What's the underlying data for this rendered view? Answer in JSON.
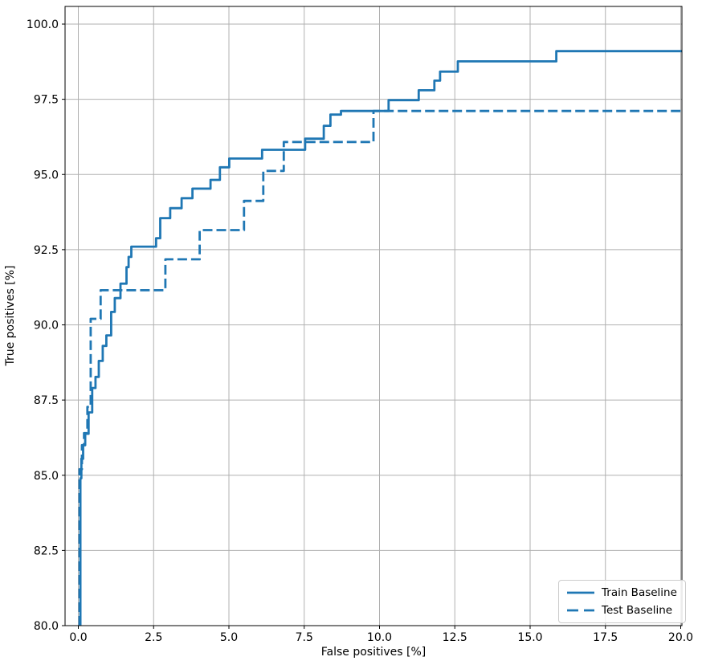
{
  "chart_data": {
    "type": "line",
    "subtype": "step-roc-curve",
    "title": "",
    "xlabel": "False positives [%]",
    "ylabel": "True positives [%]",
    "xlim": [
      -0.44,
      20.04
    ],
    "ylim": [
      80.0,
      100.6
    ],
    "xticks": [
      0.0,
      2.5,
      5.0,
      7.5,
      10.0,
      12.5,
      15.0,
      17.5,
      20.0
    ],
    "yticks": [
      80.0,
      82.5,
      85.0,
      87.5,
      90.0,
      92.5,
      95.0,
      97.5,
      100.0
    ],
    "grid": true,
    "grid_color": "#b0b0b0",
    "spine_color": "#000000",
    "legend_position": "lower right",
    "series": [
      {
        "name": "Train Baseline",
        "style": "solid",
        "color": "#1f77b4",
        "points": [
          [
            0.07,
            80.0
          ],
          [
            0.07,
            84.9
          ],
          [
            0.1,
            84.9
          ],
          [
            0.1,
            85.55
          ],
          [
            0.16,
            85.55
          ],
          [
            0.16,
            86.0
          ],
          [
            0.23,
            86.0
          ],
          [
            0.23,
            86.38
          ],
          [
            0.34,
            86.38
          ],
          [
            0.34,
            87.09
          ],
          [
            0.46,
            87.09
          ],
          [
            0.46,
            87.9
          ],
          [
            0.57,
            87.9
          ],
          [
            0.57,
            88.27
          ],
          [
            0.68,
            88.27
          ],
          [
            0.68,
            88.8
          ],
          [
            0.81,
            88.8
          ],
          [
            0.81,
            89.3
          ],
          [
            0.93,
            89.3
          ],
          [
            0.93,
            89.65
          ],
          [
            1.09,
            89.65
          ],
          [
            1.09,
            90.43
          ],
          [
            1.21,
            90.43
          ],
          [
            1.21,
            90.89
          ],
          [
            1.4,
            90.89
          ],
          [
            1.4,
            91.37
          ],
          [
            1.6,
            91.37
          ],
          [
            1.6,
            91.92
          ],
          [
            1.67,
            91.92
          ],
          [
            1.67,
            92.26
          ],
          [
            1.76,
            92.26
          ],
          [
            1.76,
            92.6
          ],
          [
            2.58,
            92.6
          ],
          [
            2.58,
            92.88
          ],
          [
            2.72,
            92.88
          ],
          [
            2.72,
            93.55
          ],
          [
            3.05,
            93.55
          ],
          [
            3.05,
            93.88
          ],
          [
            3.43,
            93.88
          ],
          [
            3.43,
            94.21
          ],
          [
            3.79,
            94.21
          ],
          [
            3.79,
            94.53
          ],
          [
            4.39,
            94.53
          ],
          [
            4.39,
            94.82
          ],
          [
            4.7,
            94.82
          ],
          [
            4.7,
            95.24
          ],
          [
            5.01,
            95.24
          ],
          [
            5.01,
            95.53
          ],
          [
            6.1,
            95.53
          ],
          [
            6.1,
            95.82
          ],
          [
            7.53,
            95.82
          ],
          [
            7.53,
            96.19
          ],
          [
            8.15,
            96.19
          ],
          [
            8.15,
            96.62
          ],
          [
            8.37,
            96.62
          ],
          [
            8.37,
            96.99
          ],
          [
            8.72,
            96.99
          ],
          [
            8.72,
            97.11
          ],
          [
            10.3,
            97.11
          ],
          [
            10.3,
            97.47
          ],
          [
            11.3,
            97.47
          ],
          [
            11.3,
            97.8
          ],
          [
            11.82,
            97.8
          ],
          [
            11.82,
            98.12
          ],
          [
            12.01,
            98.12
          ],
          [
            12.01,
            98.42
          ],
          [
            12.6,
            98.42
          ],
          [
            12.6,
            98.76
          ],
          [
            15.87,
            98.76
          ],
          [
            15.87,
            99.1
          ],
          [
            20.04,
            99.1
          ]
        ]
      },
      {
        "name": "Test Baseline",
        "style": "dashed",
        "color": "#1f77b4",
        "points": [
          [
            0.04,
            80.0
          ],
          [
            0.04,
            85.2
          ],
          [
            0.12,
            85.2
          ],
          [
            0.12,
            86.0
          ],
          [
            0.19,
            86.0
          ],
          [
            0.19,
            86.4
          ],
          [
            0.3,
            86.4
          ],
          [
            0.3,
            87.27
          ],
          [
            0.41,
            87.27
          ],
          [
            0.41,
            90.2
          ],
          [
            0.74,
            90.2
          ],
          [
            0.74,
            91.15
          ],
          [
            2.89,
            91.15
          ],
          [
            2.89,
            92.18
          ],
          [
            4.03,
            92.18
          ],
          [
            4.03,
            93.15
          ],
          [
            5.5,
            93.15
          ],
          [
            5.5,
            94.12
          ],
          [
            6.14,
            94.12
          ],
          [
            6.14,
            95.12
          ],
          [
            6.82,
            95.12
          ],
          [
            6.82,
            96.08
          ],
          [
            9.8,
            96.08
          ],
          [
            9.8,
            97.11
          ],
          [
            20.04,
            97.11
          ]
        ]
      }
    ]
  }
}
